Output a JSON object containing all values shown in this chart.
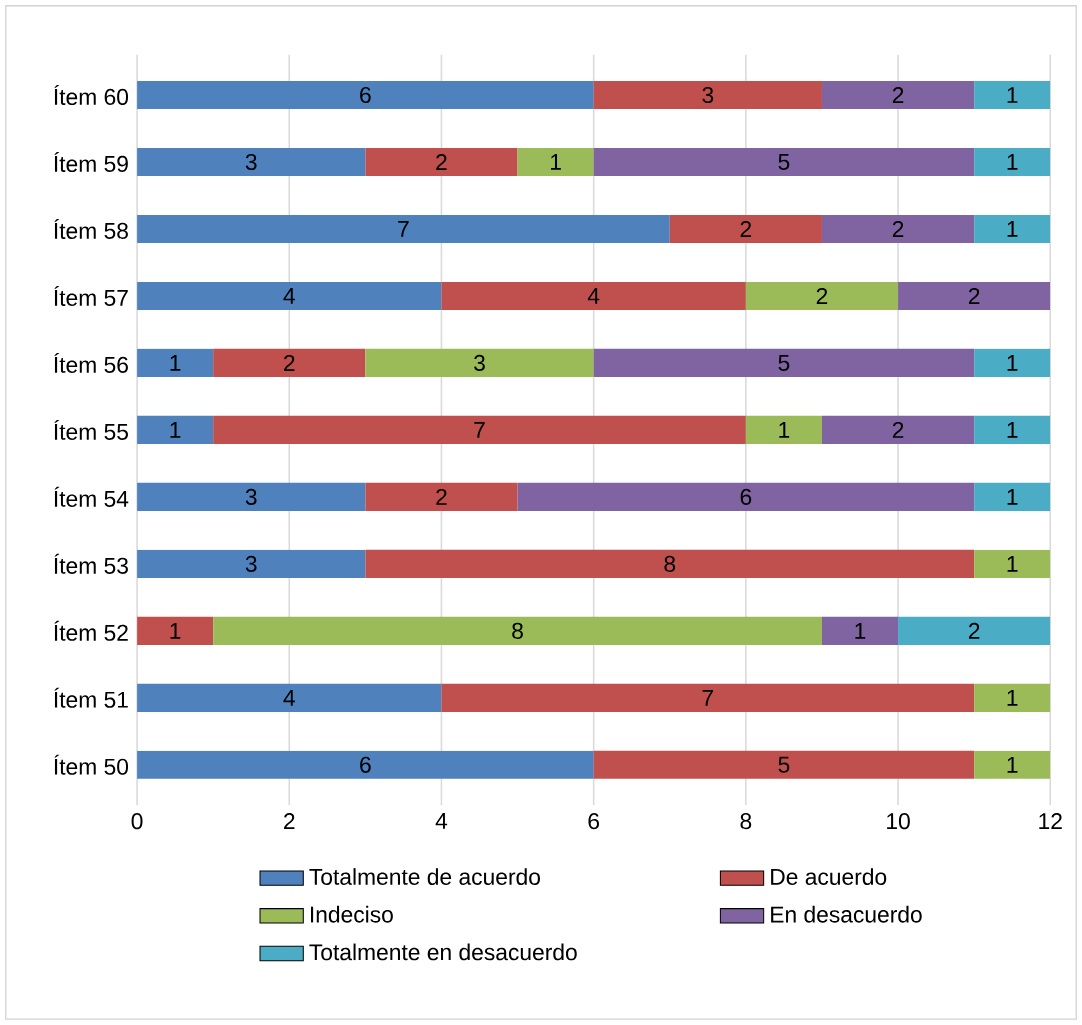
{
  "chart_data": {
    "type": "bar",
    "orientation": "horizontal",
    "stacked": true,
    "data_labels": true,
    "grid": "x",
    "legend": "bottom",
    "categories": [
      "Ítem 60",
      "Ítem 59",
      "Ítem 58",
      "Ítem 57",
      "Ítem 56",
      "Ítem 55",
      "Ítem 54",
      "Ítem 53",
      "Ítem 52",
      "Ítem 51",
      "Ítem 50"
    ],
    "xlim": [
      0,
      12
    ],
    "xticks": [
      0,
      2,
      4,
      6,
      8,
      10,
      12
    ],
    "series": [
      {
        "name": "Totalmente de acuerdo",
        "color": "#4f81bd",
        "values": [
          6,
          3,
          7,
          4,
          1,
          1,
          3,
          3,
          null,
          4,
          6
        ]
      },
      {
        "name": "De acuerdo",
        "color": "#c0504d",
        "values": [
          3,
          2,
          2,
          4,
          2,
          7,
          2,
          8,
          1,
          7,
          5
        ]
      },
      {
        "name": "Indeciso",
        "color": "#9bbb59",
        "values": [
          null,
          1,
          null,
          2,
          3,
          1,
          null,
          1,
          8,
          1,
          1
        ]
      },
      {
        "name": "En desacuerdo",
        "color": "#8064a2",
        "values": [
          2,
          5,
          2,
          2,
          5,
          2,
          6,
          null,
          1,
          null,
          null
        ]
      },
      {
        "name": "Totalmente en desacuerdo",
        "color": "#4bacc6",
        "values": [
          1,
          1,
          1,
          null,
          1,
          1,
          1,
          null,
          2,
          null,
          null
        ]
      }
    ]
  }
}
